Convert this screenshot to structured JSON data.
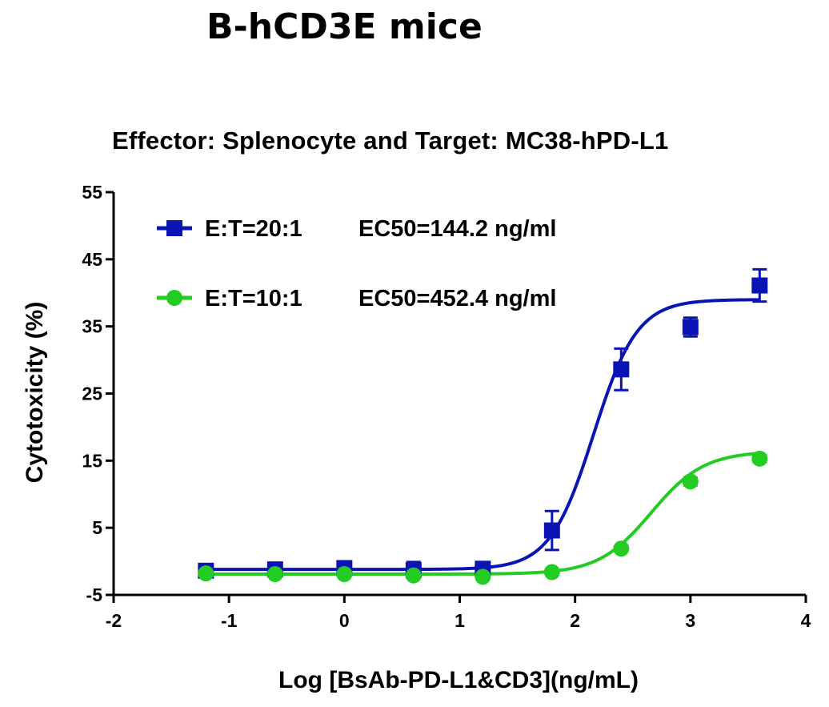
{
  "page_title": "B-hCD3E mice",
  "chart_data": {
    "type": "line",
    "title": "Effector: Splenocyte and Target: MC38-hPD-L1",
    "xlabel": "Log [BsAb-PD-L1&CD3](ng/mL)",
    "ylabel": "Cytotoxicity (%)",
    "xlim": [
      -2,
      4
    ],
    "ylim": [
      -5,
      55
    ],
    "x_ticks": [
      "-2",
      "-1",
      "0",
      "1",
      "2",
      "3",
      "4"
    ],
    "y_ticks": [
      "-5",
      "5",
      "15",
      "25",
      "35",
      "45",
      "55"
    ],
    "grid": false,
    "legend_position": "top-left",
    "series": [
      {
        "name": "E:T=20:1",
        "annotation": "EC50=144.2 ng/ml",
        "color": "#0a14b4",
        "marker": "square",
        "x": [
          -1.2,
          -0.6,
          0.0,
          0.6,
          1.2,
          1.8,
          2.4,
          3.0,
          3.6
        ],
        "y": [
          -1.4,
          -1.2,
          -1.0,
          -1.3,
          -1.1,
          4.6,
          28.6,
          34.9,
          41.1
        ],
        "error": [
          0.9,
          0.7,
          0.8,
          1.2,
          0.6,
          2.9,
          3.1,
          1.4,
          2.4
        ],
        "fit": {
          "bottom": -1.2,
          "top": 39.0,
          "log_ec50": 2.16,
          "hill": 2.3
        }
      },
      {
        "name": "E:T=10:1",
        "annotation": "EC50=452.4 ng/ml",
        "color": "#22cc22",
        "marker": "circle",
        "x": [
          -1.2,
          -0.6,
          0.0,
          0.6,
          1.2,
          1.8,
          2.4,
          3.0,
          3.6
        ],
        "y": [
          -1.8,
          -1.9,
          -1.9,
          -2.1,
          -2.3,
          -1.6,
          1.9,
          11.9,
          15.3
        ],
        "error": [
          0.4,
          0.4,
          0.4,
          0.4,
          0.3,
          0.3,
          0.4,
          0.6,
          0.5
        ],
        "fit": {
          "bottom": -1.9,
          "top": 16.4,
          "log_ec50": 2.66,
          "hill": 1.9
        }
      }
    ]
  }
}
